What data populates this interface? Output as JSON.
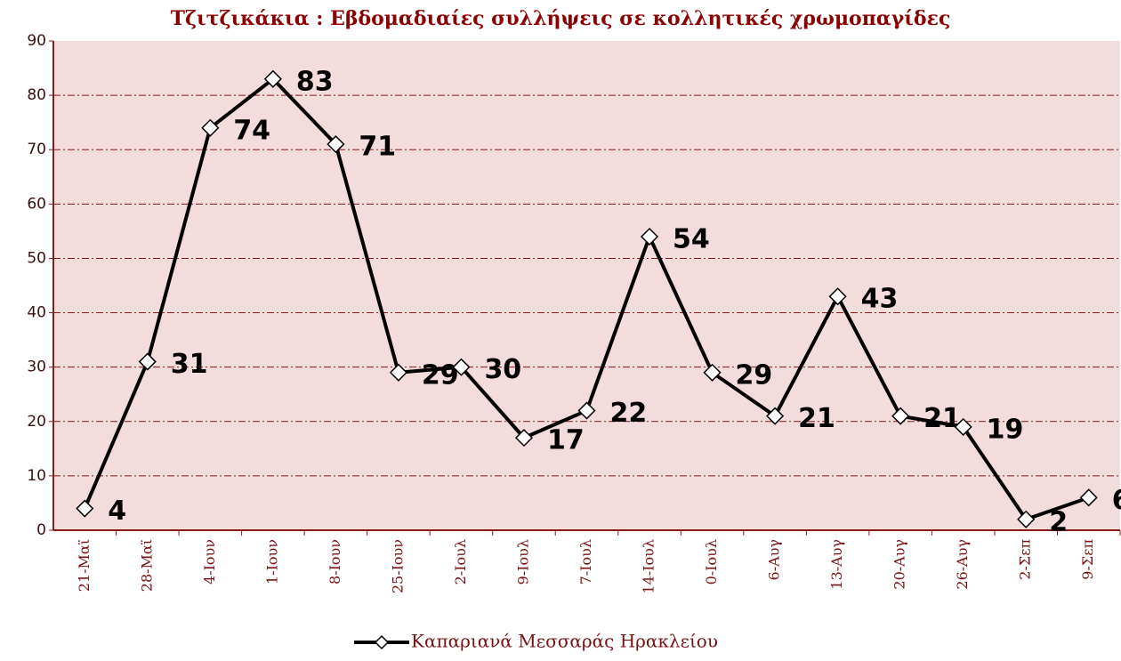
{
  "chart_data": {
    "type": "line",
    "title": "Τζιτζικάκια : Εβδομαδιαίες συλλήψεις σε κολλητικές χρωμοπαγίδες",
    "categories": [
      "21-Μαϊ",
      "28-Μαϊ",
      "4-Ιουν",
      "1-Ιουν",
      "8-Ιουν",
      "25-Ιουν",
      "2-Ιουλ",
      "9-Ιουλ",
      "7-Ιουλ",
      "14-Ιουλ",
      "0-Ιουλ",
      "6-Αυγ",
      "13-Αυγ",
      "20-Αυγ",
      "26-Αυγ",
      "2-Σεπ",
      "9-Σεπ"
    ],
    "series": [
      {
        "name": "Καπαριανά Μεσσαράς Ηρακλείου",
        "color": "#000000",
        "values": [
          4,
          31,
          74,
          83,
          71,
          29,
          30,
          17,
          22,
          54,
          29,
          21,
          43,
          21,
          19,
          2,
          6
        ]
      }
    ],
    "ylim": [
      0,
      90
    ],
    "yticks": [
      0,
      10,
      20,
      30,
      40,
      50,
      60,
      70,
      80,
      90
    ],
    "grid": true
  }
}
